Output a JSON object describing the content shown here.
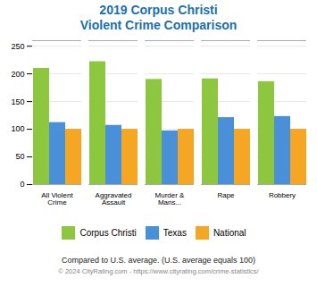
{
  "chart_data": {
    "type": "bar",
    "title": "2019 Corpus Christi",
    "subtitle": "Violent Crime Comparison",
    "categories": [
      "All Violent Crime",
      "Aggravated Assault",
      "Murder & Mans...",
      "Rape",
      "Robbery"
    ],
    "series": [
      {
        "name": "Corpus Christi",
        "color": "#8dc63f",
        "values": [
          210,
          222,
          190,
          191,
          186
        ]
      },
      {
        "name": "Texas",
        "color": "#4a90d9",
        "values": [
          112,
          107,
          97,
          121,
          123
        ]
      },
      {
        "name": "National",
        "color": "#f5a623",
        "values": [
          100,
          100,
          100,
          100,
          100
        ]
      }
    ],
    "ylim": [
      0,
      260
    ],
    "yticks": [
      0,
      50,
      100,
      150,
      200,
      250
    ],
    "grid": true,
    "legend": "bottom",
    "annotations": [
      "Compared to U.S. average. (U.S. average equals 100)",
      "© 2024 CityRating.com - https://www.cityrating.com/crime-statistics/"
    ]
  }
}
